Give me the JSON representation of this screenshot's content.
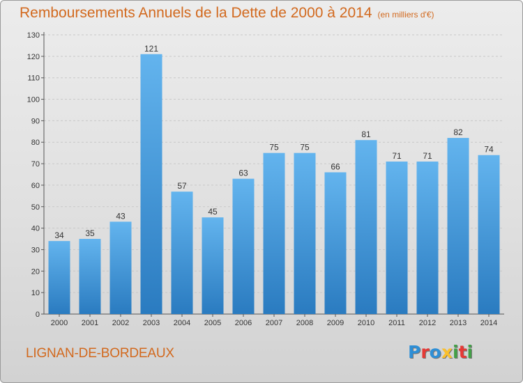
{
  "title": "Remboursements Annuels de la Dette de 2000 à 2014",
  "unit": "(en milliers d'€)",
  "commune": "LIGNAN-DE-BORDEAUX",
  "logo": {
    "letters": [
      "P",
      "r",
      "o",
      "x",
      "i",
      "t",
      "i"
    ],
    "colors": [
      "#2e8fd6",
      "#e53935",
      "#2e8fd6",
      "#fbc02d",
      "#43a047",
      "#e53935",
      "#43a047"
    ]
  },
  "colors": {
    "bar_top": "#63b4ee",
    "bar_bottom": "#2a7bc0",
    "title": "#d2691e"
  },
  "chart_data": {
    "type": "bar",
    "title": "Remboursements Annuels de la Dette de 2000 à 2014",
    "xlabel": "",
    "ylabel": "",
    "categories": [
      "2000",
      "2001",
      "2002",
      "2003",
      "2004",
      "2005",
      "2006",
      "2007",
      "2008",
      "2009",
      "2010",
      "2011",
      "2012",
      "2013",
      "2014"
    ],
    "values": [
      34,
      35,
      43,
      121,
      57,
      45,
      63,
      75,
      75,
      66,
      81,
      71,
      71,
      82,
      74
    ],
    "ylim": [
      0,
      130
    ],
    "yticks": [
      0,
      10,
      20,
      30,
      40,
      50,
      60,
      70,
      80,
      90,
      100,
      110,
      120,
      130
    ],
    "grid": true
  }
}
